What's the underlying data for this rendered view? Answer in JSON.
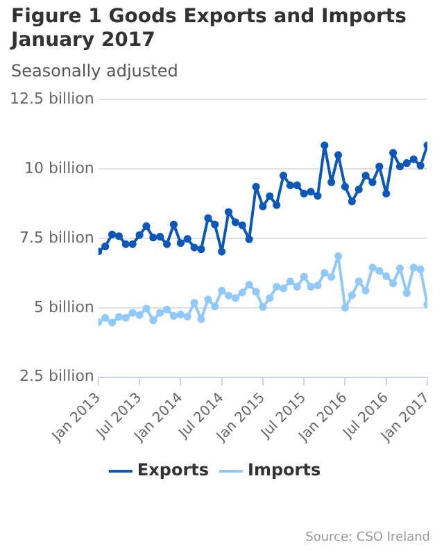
{
  "chart_data": {
    "type": "line",
    "title": "Figure 1 Goods Exports and Imports January 2017",
    "subtitle": "Seasonally adjusted",
    "annotations": [
      "Source: CSO Ireland"
    ],
    "x": [
      "2013-01",
      "2013-02",
      "2013-03",
      "2013-04",
      "2013-05",
      "2013-06",
      "2013-07",
      "2013-08",
      "2013-09",
      "2013-10",
      "2013-11",
      "2013-12",
      "2014-01",
      "2014-02",
      "2014-03",
      "2014-04",
      "2014-05",
      "2014-06",
      "2014-07",
      "2014-08",
      "2014-09",
      "2014-10",
      "2014-11",
      "2014-12",
      "2015-01",
      "2015-02",
      "2015-03",
      "2015-04",
      "2015-05",
      "2015-06",
      "2015-07",
      "2015-08",
      "2015-09",
      "2015-10",
      "2015-11",
      "2015-12",
      "2016-01",
      "2016-02",
      "2016-03",
      "2016-04",
      "2016-05",
      "2016-06",
      "2016-07",
      "2016-08",
      "2016-09",
      "2016-10",
      "2016-11",
      "2016-12",
      "2017-01"
    ],
    "series": [
      {
        "name": "Exports",
        "color": "#0b58b8",
        "values": [
          7.03,
          7.21,
          7.64,
          7.58,
          7.29,
          7.29,
          7.62,
          7.94,
          7.53,
          7.56,
          7.29,
          8.0,
          7.33,
          7.48,
          7.17,
          7.11,
          8.23,
          8.0,
          7.02,
          8.45,
          8.08,
          7.97,
          7.47,
          9.36,
          8.65,
          9.02,
          8.7,
          9.76,
          9.41,
          9.41,
          9.11,
          9.18,
          9.03,
          10.85,
          9.52,
          10.5,
          9.36,
          8.83,
          9.26,
          9.76,
          9.52,
          10.09,
          9.11,
          10.58,
          10.09,
          10.21,
          10.35,
          10.12,
          10.85
        ]
      },
      {
        "name": "Imports",
        "color": "#92c9fb",
        "values": [
          4.48,
          4.64,
          4.47,
          4.67,
          4.64,
          4.82,
          4.74,
          4.97,
          4.55,
          4.82,
          4.94,
          4.71,
          4.76,
          4.68,
          5.18,
          4.59,
          5.3,
          5.05,
          5.62,
          5.44,
          5.35,
          5.55,
          5.83,
          5.58,
          5.03,
          5.35,
          5.76,
          5.7,
          5.95,
          5.76,
          6.12,
          5.76,
          5.8,
          6.26,
          6.11,
          6.86,
          5.0,
          5.45,
          5.95,
          5.62,
          6.45,
          6.33,
          6.14,
          5.88,
          6.42,
          5.53,
          6.45,
          6.38,
          5.12
        ]
      }
    ],
    "xlim": [
      "2013-01",
      "2017-01"
    ],
    "xticks": [
      {
        "value": "2013-01",
        "label": "Jan 2013"
      },
      {
        "value": "2013-07",
        "label": "Jul 2013"
      },
      {
        "value": "2014-01",
        "label": "Jan 2014"
      },
      {
        "value": "2014-07",
        "label": "Jul 2014"
      },
      {
        "value": "2015-01",
        "label": "Jan 2015"
      },
      {
        "value": "2015-07",
        "label": "Jul 2015"
      },
      {
        "value": "2016-01",
        "label": "Jan 2016"
      },
      {
        "value": "2016-07",
        "label": "Jul 2016"
      },
      {
        "value": "2017-01",
        "label": "Jan 2017"
      }
    ],
    "ylim": [
      2.5,
      12.5
    ],
    "yticks": [
      {
        "value": 2.5,
        "label": "2.5 billion"
      },
      {
        "value": 5,
        "label": "5 billion"
      },
      {
        "value": 7.5,
        "label": "7.5 billion"
      },
      {
        "value": 10,
        "label": "10 billion"
      },
      {
        "value": 12.5,
        "label": "12.5 billion"
      }
    ],
    "grid": "y",
    "legend": "bottom",
    "marker": "circle",
    "line_style": "solid"
  }
}
